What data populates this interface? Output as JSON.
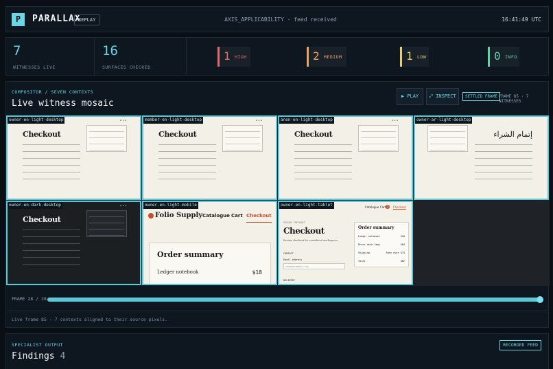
{
  "header": {
    "logo_letter": "P",
    "brand": "PARALLAX",
    "replay_label": "REPLAY",
    "feed_status": "AXIS_APPLICABILITY · feed received",
    "clock": "16:41:49 UTC"
  },
  "stats": {
    "witnesses": {
      "value": "7",
      "label": "WITNESSES LIVE"
    },
    "surfaces": {
      "value": "16",
      "label": "SURFACES CHECKED"
    },
    "severities": [
      {
        "count": "1",
        "label": "HIGH",
        "color": "#e86b6b"
      },
      {
        "count": "2",
        "label": "MEDIUM",
        "color": "#f0a35a"
      },
      {
        "count": "1",
        "label": "LOW",
        "color": "#e8cf6a"
      },
      {
        "count": "0",
        "label": "INFO",
        "color": "#5fd6a8"
      }
    ]
  },
  "compositor": {
    "kicker": "COMPOSITOR / SEVEN CONTEXTS",
    "title": "Live witness mosaic",
    "play_label": "▶ PLAY",
    "inspect_label": "⤢ INSPECT",
    "settled_label": "SETTLED FRAME",
    "frame_info": "FRAME 85 · 7 WITNESSES",
    "tiles": [
      {
        "label": "owner-en-light-desktop",
        "heading": "Checkout",
        "theme": "light"
      },
      {
        "label": "member-en-light-desktop",
        "heading": "Checkout",
        "theme": "light"
      },
      {
        "label": "anon-en-light-desktop",
        "heading": "Checkout",
        "theme": "light"
      },
      {
        "label": "owner-ar-light-desktop",
        "heading": "إتمام الشراء",
        "theme": "light"
      },
      {
        "label": "owner-en-dark-desktop",
        "heading": "Checkout",
        "theme": "dark"
      },
      {
        "label": "owner-en-light-mobile"
      },
      {
        "label": "owner-en-light-tablet"
      }
    ],
    "mobile": {
      "brand": "Folio Supply",
      "nav": [
        "Catalogue",
        "Cart",
        "Checkout"
      ],
      "summary_title": "Order summary",
      "item": "Ledger notebook",
      "price": "$18"
    },
    "tablet": {
      "nav": [
        "Catalogue",
        "Cart",
        "Checkout"
      ],
      "cart_badge": "2",
      "kicker": "SECURE CHECKOUT",
      "heading": "Checkout",
      "subtitle": "Review checkout for considered workspaces",
      "contact": "CONTACT",
      "email_label": "Email address",
      "email_placeholder": "name@example.com",
      "delivery": "DELIVERY",
      "summary_title": "Order summary",
      "rows": [
        {
          "item": "Ledger notebook",
          "price": "$18"
        },
        {
          "item": "Brass desk lamp",
          "price": "$64"
        },
        {
          "item": "Shipping",
          "price": "Rate over $75"
        },
        {
          "item": "Total",
          "price": "$82"
        }
      ]
    },
    "slider": {
      "label": "FRAME 28 / 28",
      "progress": 1.0
    },
    "note": "Live frame 85 · 7 contexts aligned to their source pixels."
  },
  "findings": {
    "kicker": "SPECIALIST OUTPUT",
    "title": "Findings",
    "count": "4",
    "recorded_label": "RECORDED FEED"
  },
  "colors": {
    "accent": "#6ad6e6",
    "background": "#0a0f16",
    "panel": "#0e1620"
  }
}
